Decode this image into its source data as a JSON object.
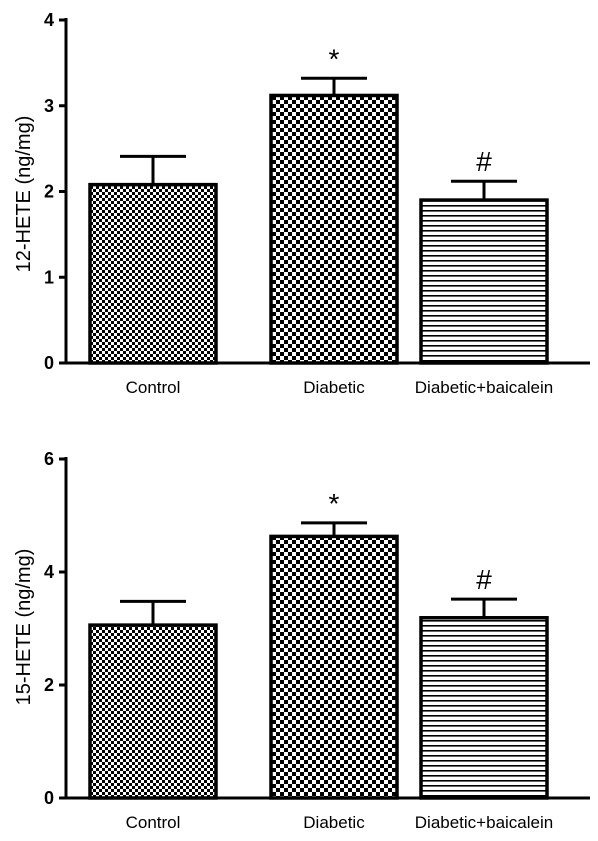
{
  "chart_data": [
    {
      "type": "bar",
      "ylabel": "12-HETE (ng/mg)",
      "ylim": [
        0,
        4
      ],
      "yticks": [
        0,
        1,
        2,
        3,
        4
      ],
      "categories": [
        "Control",
        "Diabetic",
        "Diabetic+baicalein"
      ],
      "values": [
        2.08,
        3.12,
        1.9
      ],
      "errors": [
        0.33,
        0.2,
        0.22
      ],
      "annotations": [
        "",
        "*",
        "#"
      ],
      "patterns": [
        "check-fine",
        "check-coarse",
        "horizontal-lines"
      ]
    },
    {
      "type": "bar",
      "ylabel": "15-HETE (ng/mg)",
      "ylim": [
        0,
        6
      ],
      "yticks": [
        0,
        2,
        4,
        6
      ],
      "categories": [
        "Control",
        "Diabetic",
        "Diabetic+baicalein"
      ],
      "values": [
        3.06,
        4.63,
        3.19
      ],
      "errors": [
        0.42,
        0.24,
        0.33
      ],
      "annotations": [
        "",
        "*",
        "#"
      ],
      "patterns": [
        "check-fine",
        "check-coarse",
        "horizontal-lines"
      ]
    }
  ]
}
